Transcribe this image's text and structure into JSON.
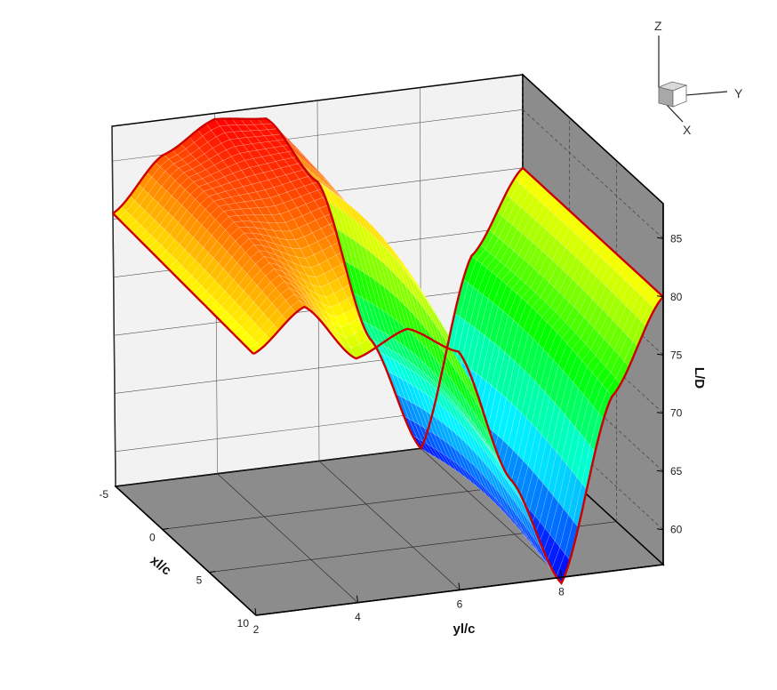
{
  "chart_data": {
    "type": "surface",
    "xlabel": "xl/c",
    "ylabel": "yl/c",
    "zlabel": "L/D",
    "x_ticks": [
      "-5",
      "0",
      "5",
      "10"
    ],
    "y_ticks": [
      "2",
      "4",
      "6",
      "8"
    ],
    "z_ticks": [
      "60",
      "65",
      "70",
      "75",
      "80",
      "85"
    ],
    "xlim": [
      -5,
      10
    ],
    "ylim": [
      2,
      10
    ],
    "zlim": [
      57,
      88
    ],
    "colormap": [
      "#0000ff",
      "#00ffff",
      "#00ff00",
      "#ffff00",
      "#ff0000"
    ],
    "edge_color": "#cc0000",
    "floor_color": "#8c8c8c",
    "side_wall_color": "#8c8c8c",
    "back_wall_color": "#f2f2f2",
    "grid": true,
    "series": [
      {
        "edge": "xl/c = -5",
        "y": [
          2,
          3,
          4,
          5,
          6,
          7,
          8,
          9,
          10
        ],
        "z": [
          80.5,
          85,
          87.5,
          87,
          81,
          67,
          57,
          73,
          80
        ]
      },
      {
        "edge": "xl/c = 10",
        "y": [
          2,
          3,
          4,
          5,
          6,
          7,
          8,
          9,
          10
        ],
        "z": [
          79.5,
          83,
          78,
          80,
          77.5,
          66,
          56.5,
          72,
          80
        ]
      }
    ]
  },
  "triad": {
    "z": "Z",
    "y": "Y",
    "x": "X"
  }
}
